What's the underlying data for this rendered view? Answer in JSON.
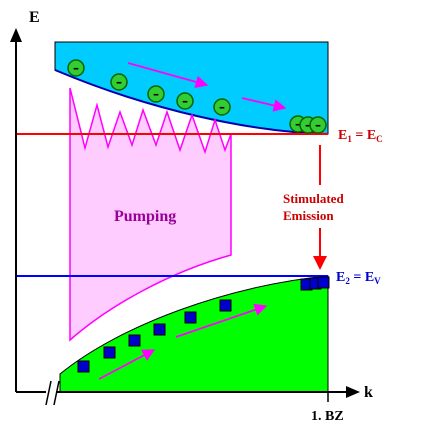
{
  "axes": {
    "y_label": "E",
    "x_label": "k",
    "x_end_label": "1. BZ"
  },
  "labels": {
    "pumping": "Pumping",
    "stimulated_line1": "Stimulated",
    "stimulated_line2": "Emission",
    "e1": {
      "main": "E",
      "sub": "1",
      "rest": " = E",
      "sub2": "C"
    },
    "e2": {
      "main": "E",
      "sub": "2",
      "rest": " = E",
      "sub2": "V"
    }
  },
  "electron_symbol": "–",
  "colors": {
    "conduction_band": "#00ccff",
    "valence_band": "#00ff00",
    "pumping": "#ffccff",
    "pumping_edge": "#ff00ff",
    "e1_line": "#ff0000",
    "e2_line": "#0000ff",
    "electron": "#33cc33",
    "hole": "#0000cc",
    "motion_arrow": "#ff00ff",
    "stimulated_text": "#cc0000",
    "pumping_text": "#990099"
  },
  "icons": {
    "electron": "electron-icon",
    "hole": "hole-icon",
    "arrow": "arrow-icon"
  }
}
